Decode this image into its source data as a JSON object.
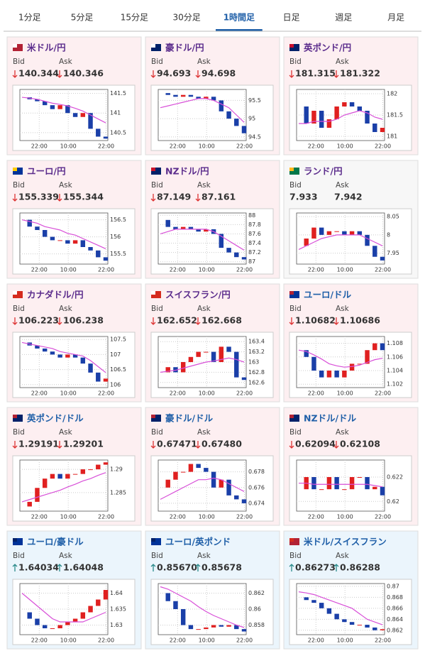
{
  "tabs": {
    "items": [
      "1分足",
      "5分足",
      "15分足",
      "30分足",
      "1時間足",
      "日足",
      "週足",
      "月足"
    ],
    "active": 4
  },
  "labels": {
    "bid": "Bid",
    "ask": "Ask"
  },
  "x_labels": [
    "22:00",
    "10:00",
    "22:00"
  ],
  "cards": [
    {
      "pair": "米ドル/円",
      "bid": "140.344",
      "ask": "140.346",
      "direction": "down",
      "title_color": "#5b2c8c",
      "flag": [
        "#b22234",
        "#ffffff"
      ],
      "chart": {
        "ylim": [
          140.3,
          141.6
        ],
        "yticks": [
          140.5,
          141,
          141.5
        ],
        "values": [
          141.4,
          141.35,
          141.3,
          141.2,
          141.1,
          141.2,
          141.0,
          140.9,
          141.0,
          140.6,
          140.4,
          140.35
        ],
        "ma": [
          141.4,
          141.38,
          141.35,
          141.3,
          141.25,
          141.22,
          141.18,
          141.12,
          141.05,
          140.95,
          140.85,
          140.75
        ]
      }
    },
    {
      "pair": "豪ドル/円",
      "bid": "94.693",
      "ask": "94.698",
      "direction": "down",
      "title_color": "#5b2c8c",
      "flag": [
        "#012169",
        "#ffffff"
      ],
      "chart": {
        "ylim": [
          94.4,
          95.8
        ],
        "yticks": [
          94.5,
          95,
          95.5
        ],
        "values": [
          95.7,
          95.65,
          95.6,
          95.65,
          95.6,
          95.55,
          95.6,
          95.5,
          95.2,
          95.0,
          94.8,
          94.6
        ],
        "ma": [
          95.3,
          95.35,
          95.4,
          95.45,
          95.5,
          95.55,
          95.55,
          95.5,
          95.4,
          95.3,
          95.1,
          94.9
        ]
      }
    },
    {
      "pair": "英ポンド/円",
      "bid": "181.315",
      "ask": "181.322",
      "direction": "down",
      "title_color": "#5b2c8c",
      "flag": [
        "#012169",
        "#c8102e"
      ],
      "chart": {
        "ylim": [
          180.9,
          182.1
        ],
        "yticks": [
          181,
          181.5,
          182
        ],
        "values": [
          181.7,
          181.3,
          181.6,
          181.2,
          181.4,
          181.7,
          181.8,
          181.7,
          181.6,
          181.3,
          181.1,
          181.2
        ],
        "ma": [
          181.3,
          181.3,
          181.35,
          181.35,
          181.35,
          181.4,
          181.5,
          181.55,
          181.6,
          181.55,
          181.45,
          181.4
        ]
      }
    },
    {
      "pair": "ユーロ/円",
      "bid": "155.339",
      "ask": "155.344",
      "direction": "down",
      "title_color": "#5b2c8c",
      "flag": [
        "#003399",
        "#ffcc00"
      ],
      "chart": {
        "ylim": [
          155.2,
          156.7
        ],
        "yticks": [
          155.5,
          156,
          156.5
        ],
        "values": [
          156.5,
          156.3,
          156.2,
          156.0,
          155.9,
          155.9,
          155.8,
          155.9,
          155.7,
          155.6,
          155.4,
          155.3
        ],
        "ma": [
          156.5,
          156.45,
          156.4,
          156.3,
          156.25,
          156.2,
          156.1,
          156.05,
          155.95,
          155.85,
          155.75,
          155.65
        ]
      }
    },
    {
      "pair": "NZドル/円",
      "bid": "87.149",
      "ask": "87.161",
      "direction": "down",
      "title_color": "#5b2c8c",
      "flag": [
        "#012169",
        "#cc142b"
      ],
      "chart": {
        "ylim": [
          86.95,
          88.05
        ],
        "yticks": [
          87,
          87.2,
          87.4,
          87.6,
          87.8,
          88
        ],
        "values": [
          87.9,
          87.75,
          87.7,
          87.75,
          87.7,
          87.65,
          87.7,
          87.6,
          87.3,
          87.2,
          87.1,
          87.05
        ],
        "ma": [
          87.6,
          87.65,
          87.7,
          87.7,
          87.7,
          87.7,
          87.7,
          87.65,
          87.55,
          87.45,
          87.35,
          87.25
        ]
      }
    },
    {
      "pair": "ランド/円",
      "bid": "7.933",
      "ask": "7.942",
      "direction": "none",
      "title_color": "#5b2c8c",
      "flag": [
        "#007749",
        "#ffb81c"
      ],
      "chart": {
        "ylim": [
          7.92,
          8.06
        ],
        "yticks": [
          7.95,
          8,
          8.05
        ],
        "values": [
          7.97,
          7.99,
          8.02,
          8.0,
          8.01,
          8.01,
          8.0,
          8.01,
          8.0,
          7.97,
          7.94,
          7.93
        ],
        "ma": [
          7.96,
          7.97,
          7.98,
          7.99,
          7.995,
          8.0,
          8.0,
          8.0,
          8.0,
          7.99,
          7.98,
          7.97
        ]
      }
    },
    {
      "pair": "カナダドル/円",
      "bid": "106.223",
      "ask": "106.238",
      "direction": "down",
      "title_color": "#5b2c8c",
      "flag": [
        "#d52b1e",
        "#ffffff"
      ],
      "chart": {
        "ylim": [
          105.9,
          107.6
        ],
        "yticks": [
          106,
          106.5,
          107,
          107.5
        ],
        "values": [
          107.4,
          107.3,
          107.2,
          107.1,
          107.0,
          106.9,
          107.0,
          106.9,
          106.7,
          106.4,
          106.1,
          106.2
        ],
        "ma": [
          107.4,
          107.35,
          107.3,
          107.25,
          107.2,
          107.1,
          107.05,
          107.0,
          106.95,
          106.8,
          106.6,
          106.4
        ]
      }
    },
    {
      "pair": "スイスフラン/円",
      "bid": "162.652",
      "ask": "162.668",
      "direction": "down",
      "title_color": "#5b2c8c",
      "flag": [
        "#d52b1e",
        "#ffffff"
      ],
      "chart": {
        "ylim": [
          162.5,
          163.5
        ],
        "yticks": [
          162.6,
          162.8,
          163,
          163.2,
          163.4
        ],
        "values": [
          162.8,
          162.9,
          162.8,
          163.0,
          163.1,
          163.2,
          163.2,
          163.0,
          163.3,
          163.2,
          162.7,
          162.65
        ],
        "ma": [
          162.8,
          162.82,
          162.84,
          162.88,
          162.92,
          162.96,
          163.0,
          163.02,
          163.05,
          163.08,
          163.05,
          163.0
        ]
      }
    },
    {
      "pair": "ユーロ/ドル",
      "bid": "1.10682",
      "ask": "1.10686",
      "direction": "down",
      "title_color": "#1f5fa8",
      "flag": [
        "#003399",
        "#b22234"
      ],
      "chart": {
        "ylim": [
          1.1015,
          1.109
        ],
        "yticks": [
          1.102,
          1.104,
          1.106,
          1.108
        ],
        "values": [
          1.107,
          1.106,
          1.104,
          1.103,
          1.104,
          1.103,
          1.104,
          1.105,
          1.105,
          1.107,
          1.108,
          1.107
        ],
        "ma": [
          1.107,
          1.1068,
          1.1063,
          1.1057,
          1.105,
          1.1047,
          1.1045,
          1.1046,
          1.1048,
          1.1052,
          1.1056,
          1.1058
        ]
      }
    },
    {
      "pair": "英ポンド/ドル",
      "bid": "1.29191",
      "ask": "1.29201",
      "direction": "down",
      "title_color": "#1f5fa8",
      "flag": [
        "#012169",
        "#b22234"
      ],
      "chart": {
        "ylim": [
          1.281,
          1.292
        ],
        "yticks": [
          1.285,
          1.29
        ],
        "values": [
          1.282,
          1.283,
          1.286,
          1.288,
          1.289,
          1.288,
          1.289,
          1.289,
          1.29,
          1.29,
          1.291,
          1.2915
        ],
        "ma": [
          1.283,
          1.2835,
          1.284,
          1.2845,
          1.285,
          1.2855,
          1.2862,
          1.2868,
          1.2875,
          1.288,
          1.2887,
          1.2893
        ]
      }
    },
    {
      "pair": "豪ドル/ドル",
      "bid": "0.67471",
      "ask": "0.67480",
      "direction": "down",
      "title_color": "#1f5fa8",
      "flag": [
        "#012169",
        "#b22234"
      ],
      "chart": {
        "ylim": [
          0.673,
          0.6795
        ],
        "yticks": [
          0.674,
          0.676,
          0.678
        ],
        "values": [
          0.676,
          0.677,
          0.678,
          0.678,
          0.679,
          0.6785,
          0.678,
          0.676,
          0.677,
          0.675,
          0.6745,
          0.674
        ],
        "ma": [
          0.6745,
          0.675,
          0.6755,
          0.676,
          0.6765,
          0.677,
          0.677,
          0.6772,
          0.677,
          0.6765,
          0.676,
          0.6755
        ]
      }
    },
    {
      "pair": "NZドル/ドル",
      "bid": "0.62094",
      "ask": "0.62108",
      "direction": "down",
      "title_color": "#1f5fa8",
      "flag": [
        "#012169",
        "#b22234"
      ],
      "chart": {
        "ylim": [
          0.6192,
          0.6234
        ],
        "yticks": [
          0.62,
          0.622
        ],
        "values": [
          0.621,
          0.622,
          0.621,
          0.621,
          0.622,
          0.621,
          0.621,
          0.622,
          0.622,
          0.621,
          0.6212,
          0.6205
        ],
        "ma": [
          0.6215,
          0.6215,
          0.6214,
          0.6214,
          0.6214,
          0.6214,
          0.6214,
          0.6214,
          0.6214,
          0.6214,
          0.6213,
          0.6212
        ]
      }
    },
    {
      "pair": "ユーロ/豪ドル",
      "bid": "1.64034",
      "ask": "1.64048",
      "direction": "up",
      "title_color": "#1f5fa8",
      "flag": [
        "#003399",
        "#012169"
      ],
      "chart": {
        "ylim": [
          1.627,
          1.643
        ],
        "yticks": [
          1.63,
          1.635,
          1.64
        ],
        "values": [
          1.634,
          1.632,
          1.63,
          1.629,
          1.629,
          1.63,
          1.631,
          1.632,
          1.634,
          1.636,
          1.638,
          1.641
        ],
        "ma": [
          1.64,
          1.638,
          1.636,
          1.634,
          1.632,
          1.631,
          1.631,
          1.631,
          1.631,
          1.632,
          1.633,
          1.634
        ]
      }
    },
    {
      "pair": "ユーロ/英ポンド",
      "bid": "0.85670",
      "ask": "0.85678",
      "direction": "up",
      "title_color": "#1f5fa8",
      "flag": [
        "#003399",
        "#012169"
      ],
      "chart": {
        "ylim": [
          0.8568,
          0.8632
        ],
        "yticks": [
          0.858,
          0.86,
          0.862
        ],
        "values": [
          0.862,
          0.861,
          0.86,
          0.858,
          0.8575,
          0.8575,
          0.8577,
          0.858,
          0.8578,
          0.858,
          0.8575,
          0.8572
        ],
        "ma": [
          0.8628,
          0.8625,
          0.862,
          0.8615,
          0.861,
          0.8603,
          0.8597,
          0.8592,
          0.8588,
          0.8584,
          0.858,
          0.8577
        ]
      }
    },
    {
      "pair": "米ドル/スイスフラン",
      "bid": "0.86273",
      "ask": "0.86288",
      "direction": "up",
      "title_color": "#1f5fa8",
      "flag": [
        "#b22234",
        "#d52b1e"
      ],
      "chart": {
        "ylim": [
          0.8612,
          0.8705
        ],
        "yticks": [
          0.862,
          0.864,
          0.866,
          0.868,
          0.87
        ],
        "values": [
          0.868,
          0.8675,
          0.867,
          0.866,
          0.865,
          0.864,
          0.8635,
          0.863,
          0.863,
          0.8625,
          0.862,
          0.8622
        ],
        "ma": [
          0.869,
          0.8688,
          0.8685,
          0.868,
          0.8675,
          0.867,
          0.8665,
          0.866,
          0.865,
          0.864,
          0.8635,
          0.863
        ]
      }
    }
  ]
}
